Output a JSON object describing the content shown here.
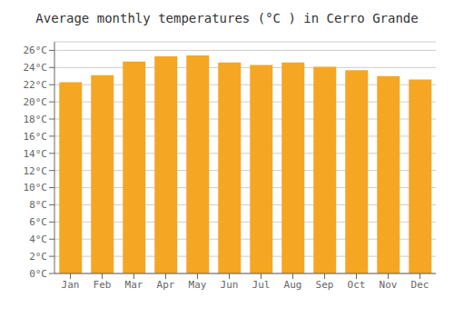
{
  "chart_data": {
    "type": "bar",
    "title": "Average monthly temperatures (°C ) in Cerro Grande",
    "categories": [
      "Jan",
      "Feb",
      "Mar",
      "Apr",
      "May",
      "Jun",
      "Jul",
      "Aug",
      "Sep",
      "Oct",
      "Nov",
      "Dec"
    ],
    "values": [
      22.3,
      23.1,
      24.7,
      25.3,
      25.4,
      24.6,
      24.3,
      24.6,
      24.1,
      23.7,
      23.0,
      22.6
    ],
    "color": "#F5A623",
    "ylim": [
      0,
      27
    ],
    "yticks": [
      {
        "value": 0,
        "label": "0°C"
      },
      {
        "value": 2,
        "label": "2°C"
      },
      {
        "value": 4,
        "label": "4°C"
      },
      {
        "value": 6,
        "label": "6°C"
      },
      {
        "value": 8,
        "label": "8°C"
      },
      {
        "value": 10,
        "label": "10°C"
      },
      {
        "value": 12,
        "label": "12°C"
      },
      {
        "value": 14,
        "label": "14°C"
      },
      {
        "value": 16,
        "label": "16°C"
      },
      {
        "value": 18,
        "label": "18°C"
      },
      {
        "value": 20,
        "label": "20°C"
      },
      {
        "value": 22,
        "label": "22°C"
      },
      {
        "value": 24,
        "label": "24°C"
      },
      {
        "value": 26,
        "label": "26°C"
      }
    ],
    "grid": true
  }
}
